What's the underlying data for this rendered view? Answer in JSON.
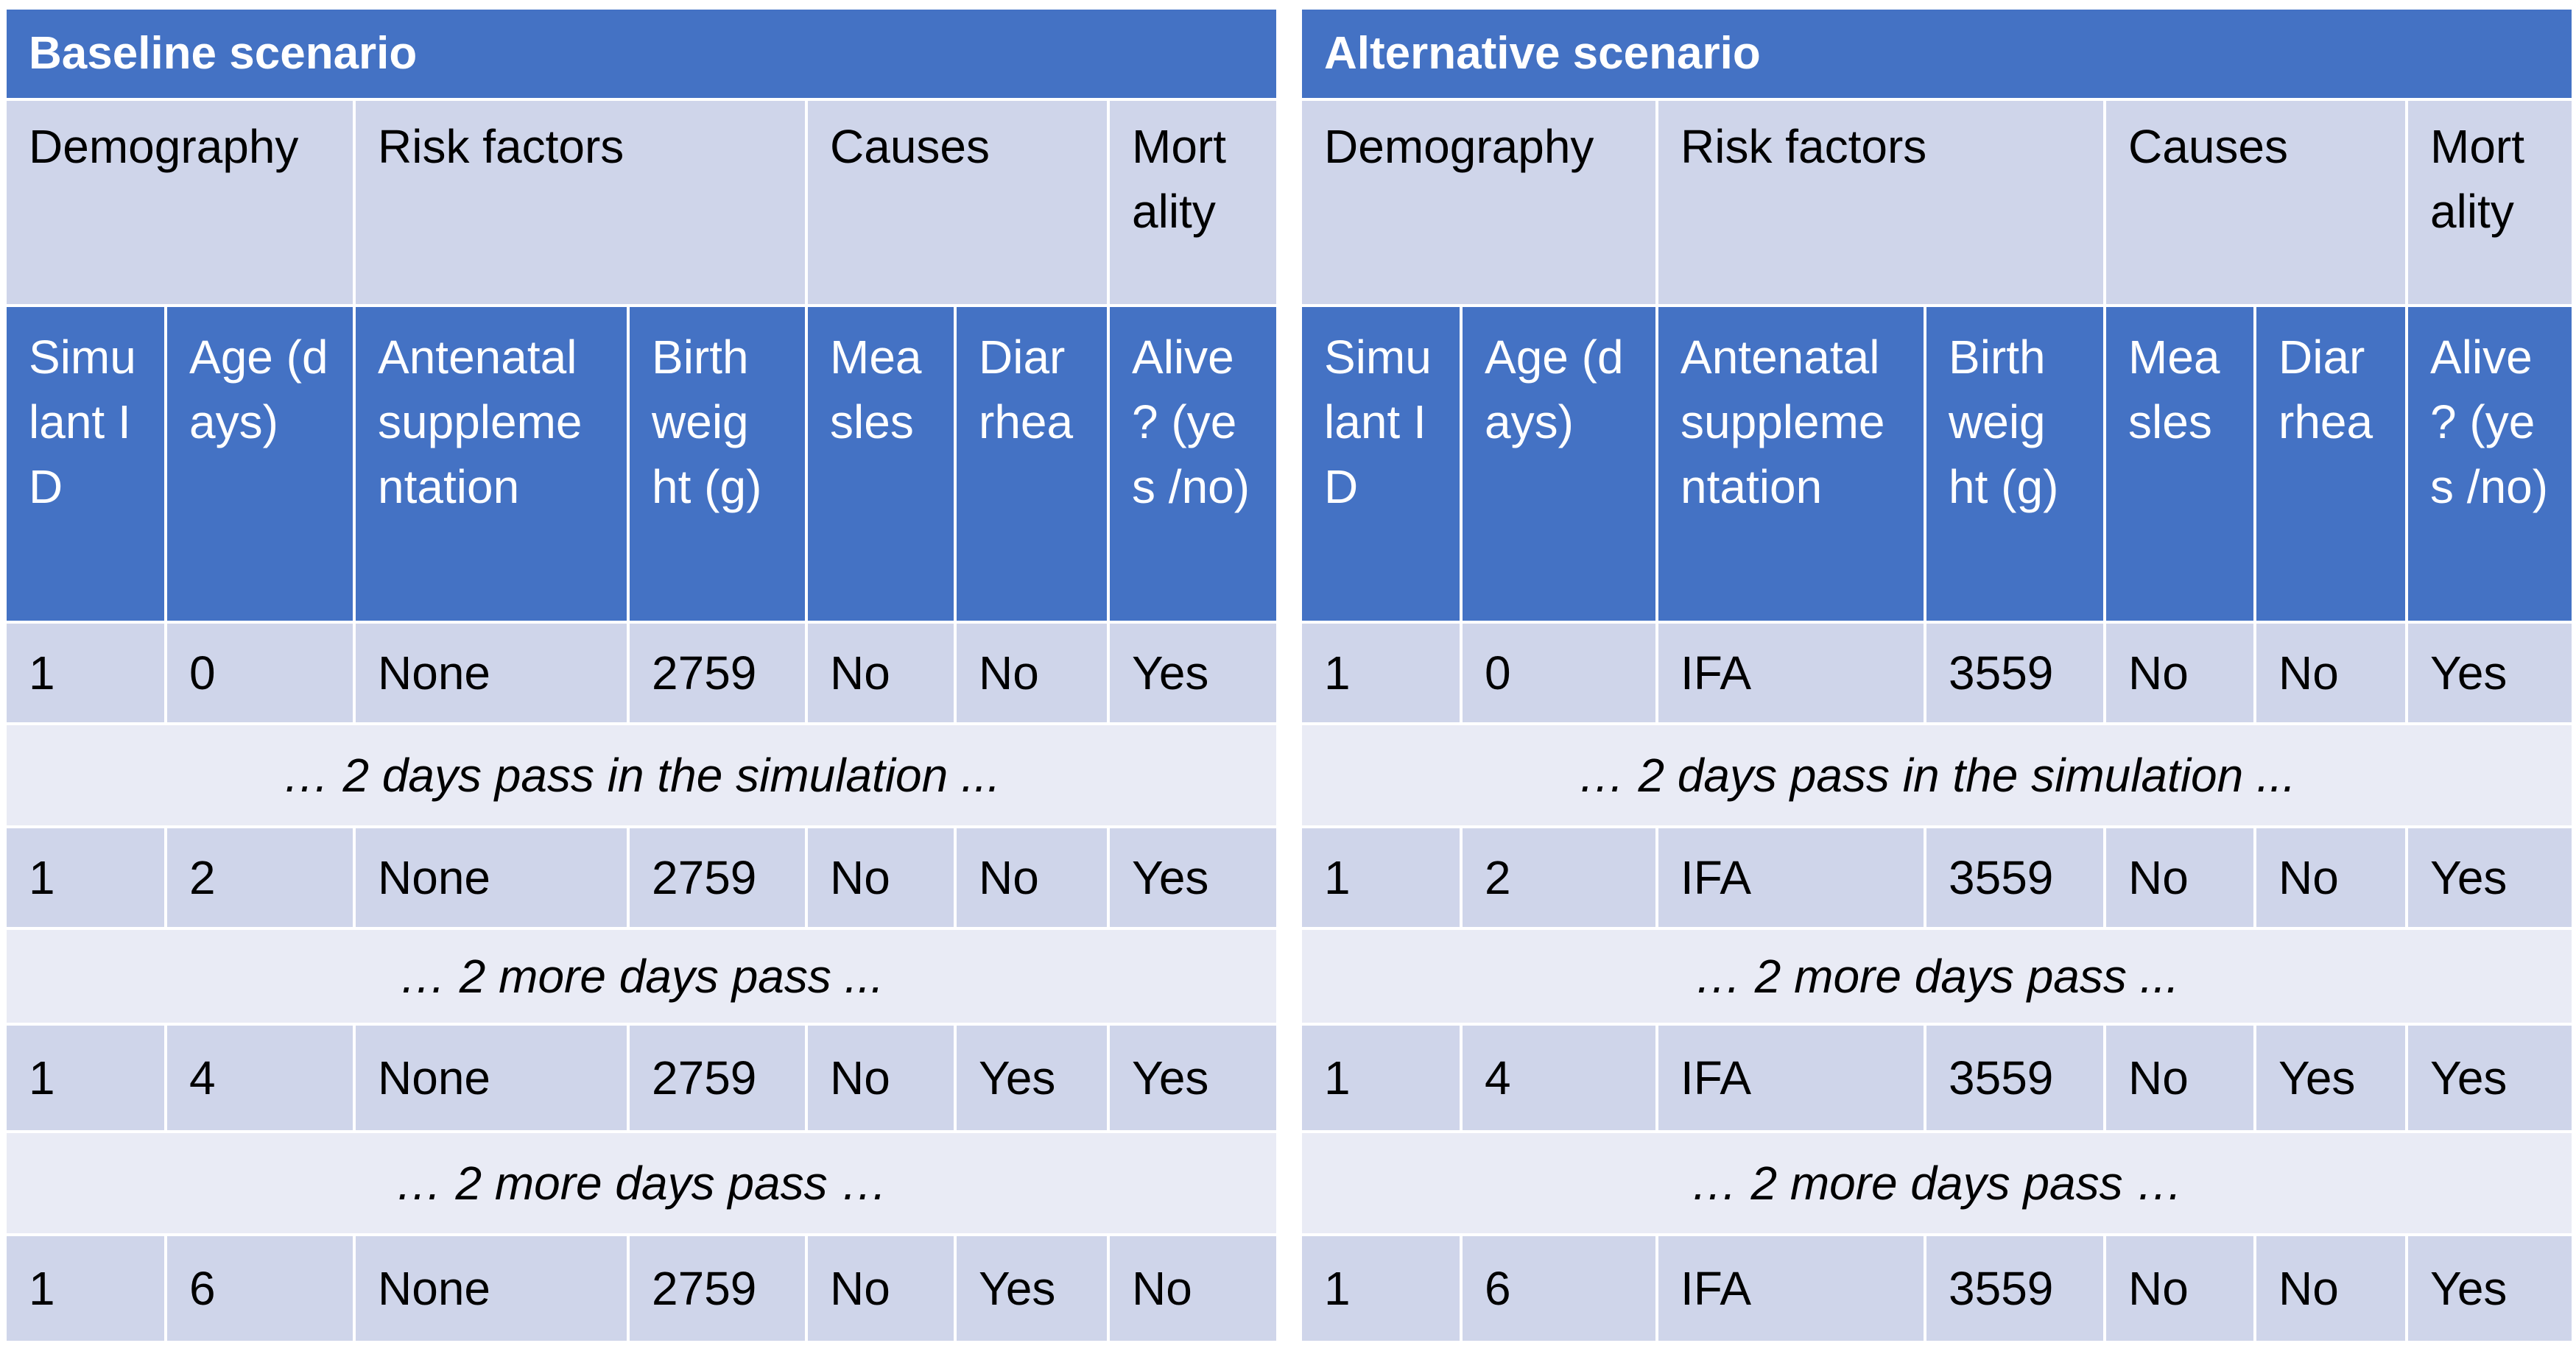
{
  "baseline": {
    "title": "Baseline scenario",
    "groups": {
      "demography": "Demography",
      "risk_factors": "Risk factors",
      "causes": "Causes",
      "mortality": "Mort ality"
    },
    "columns": {
      "simulant_id": "Simu lant ID",
      "age": "Age (days)",
      "antenatal": "Antenatal suppleme ntation",
      "birth_weight": "Birth weig ht (g)",
      "measles": "Mea sles",
      "diarrhea": "Diar rhea",
      "alive": "Alive ? (yes /no)"
    },
    "rows": [
      {
        "id": "1",
        "age": "0",
        "antenatal": "None",
        "birth_weight": "2759",
        "measles": "No",
        "diarrhea": "No",
        "alive": "Yes"
      },
      {
        "id": "1",
        "age": "2",
        "antenatal": "None",
        "birth_weight": "2759",
        "measles": "No",
        "diarrhea": "No",
        "alive": "Yes"
      },
      {
        "id": "1",
        "age": "4",
        "antenatal": "None",
        "birth_weight": "2759",
        "measles": "No",
        "diarrhea": "Yes",
        "alive": "Yes"
      },
      {
        "id": "1",
        "age": "6",
        "antenatal": "None",
        "birth_weight": "2759",
        "measles": "No",
        "diarrhea": "Yes",
        "alive": "No"
      }
    ],
    "notes": [
      "… 2 days pass in the simulation ...",
      "… 2 more days pass ...",
      "… 2 more days pass …"
    ]
  },
  "alternative": {
    "title": "Alternative scenario",
    "groups": {
      "demography": "Demography",
      "risk_factors": "Risk factors",
      "causes": "Causes",
      "mortality": "Mort ality"
    },
    "columns": {
      "simulant_id": "Simu lant ID",
      "age": "Age (days)",
      "antenatal": "Antenatal suppleme ntation",
      "birth_weight": "Birth weig ht (g)",
      "measles": "Mea sles",
      "diarrhea": "Diar rhea",
      "alive": "Alive ? (yes /no)"
    },
    "rows": [
      {
        "id": "1",
        "age": "0",
        "antenatal": "IFA",
        "birth_weight": "3559",
        "measles": "No",
        "diarrhea": "No",
        "alive": "Yes"
      },
      {
        "id": "1",
        "age": "2",
        "antenatal": "IFA",
        "birth_weight": "3559",
        "measles": "No",
        "diarrhea": "No",
        "alive": "Yes"
      },
      {
        "id": "1",
        "age": "4",
        "antenatal": "IFA",
        "birth_weight": "3559",
        "measles": "No",
        "diarrhea": "Yes",
        "alive": "Yes"
      },
      {
        "id": "1",
        "age": "6",
        "antenatal": "IFA",
        "birth_weight": "3559",
        "measles": "No",
        "diarrhea": "No",
        "alive": "Yes"
      }
    ],
    "notes": [
      "… 2 days pass in the simulation ...",
      "… 2 more days pass ...",
      "… 2 more days pass …"
    ]
  }
}
